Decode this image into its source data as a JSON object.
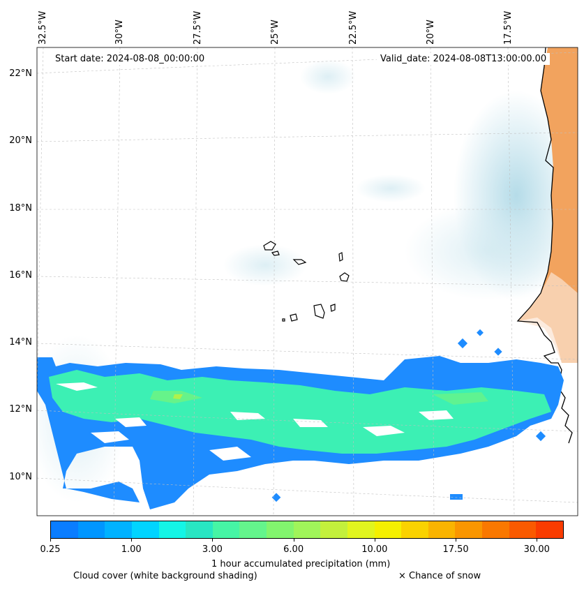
{
  "map": {
    "longitude_labels": [
      "32.5°W",
      "30°W",
      "27.5°W",
      "25°W",
      "22.5°W",
      "20°W",
      "17.5°W"
    ],
    "latitude_labels": [
      "22°N",
      "20°N",
      "18°N",
      "16°N",
      "14°N",
      "12°N",
      "10°N"
    ],
    "start_date_label": "Start date: 2024-08-08_00:00:00",
    "valid_date_label": "Valid_date: 2024-08-08T13:00:00.00",
    "land_color": "#f2a35e",
    "cloud_color": "#add8e6",
    "coastline_color": "#000000"
  },
  "colorbar": {
    "tick_labels": [
      "0.25",
      "1.00",
      "3.00",
      "6.00",
      "10.00",
      "17.50",
      "30.00"
    ],
    "colors": [
      "#0a7dff",
      "#0096ff",
      "#00b2ff",
      "#00d4ff",
      "#14f5e6",
      "#28e6c3",
      "#46f5a5",
      "#64f58c",
      "#82f56e",
      "#a0f55a",
      "#c3f03c",
      "#e1f51e",
      "#f5f000",
      "#fad200",
      "#fab400",
      "#fa9600",
      "#fa7800",
      "#fa5a00",
      "#fa3c00"
    ],
    "precip_color_main": "#3cf0b4",
    "precip_color_edge": "#1e8cff",
    "title": "1 hour accumulated precipitation (mm)"
  },
  "legend": {
    "cloud_cover": "Cloud cover (white background shading)",
    "snow": "× Chance of snow"
  }
}
